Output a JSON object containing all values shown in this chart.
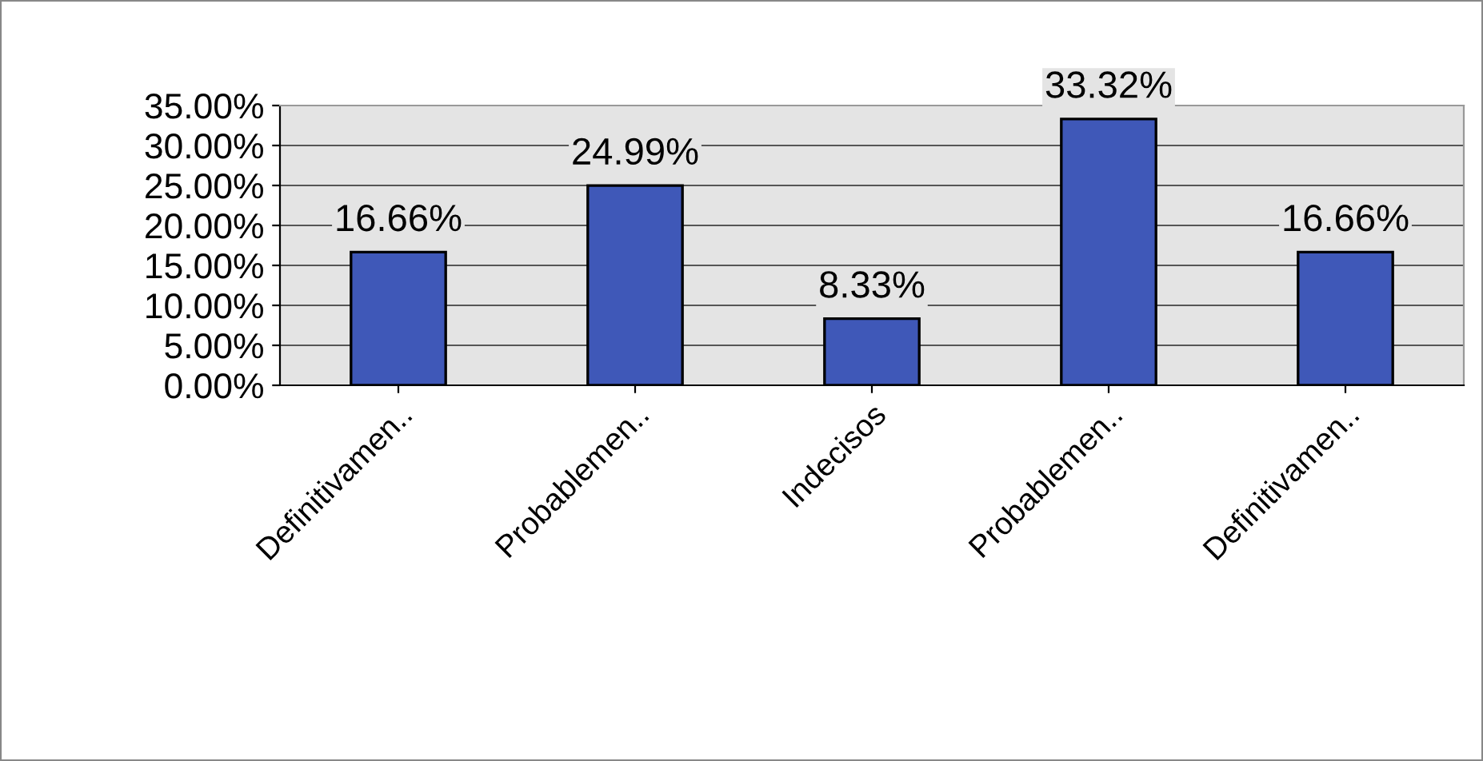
{
  "chart_data": {
    "type": "bar",
    "categories": [
      "Definitivamen..",
      "Probablemen..",
      "Indecisos",
      "Probablemen..",
      "Definitivamen.."
    ],
    "values": [
      16.66,
      24.99,
      8.33,
      33.32,
      16.66
    ],
    "value_labels": [
      "16.66%",
      "24.99%",
      "8.33%",
      "33.32%",
      "16.66%"
    ],
    "color": "#3f58b8",
    "ylim": [
      0,
      35
    ],
    "yticks": [
      {
        "value": 0,
        "label": "0.00%"
      },
      {
        "value": 5,
        "label": "5.00%"
      },
      {
        "value": 10,
        "label": "10.00%"
      },
      {
        "value": 15,
        "label": "15.00%"
      },
      {
        "value": 20,
        "label": "20.00%"
      },
      {
        "value": 25,
        "label": "25.00%"
      },
      {
        "value": 30,
        "label": "30.00%"
      },
      {
        "value": 35,
        "label": "35.00%"
      }
    ],
    "grid": "y",
    "legend": false
  }
}
